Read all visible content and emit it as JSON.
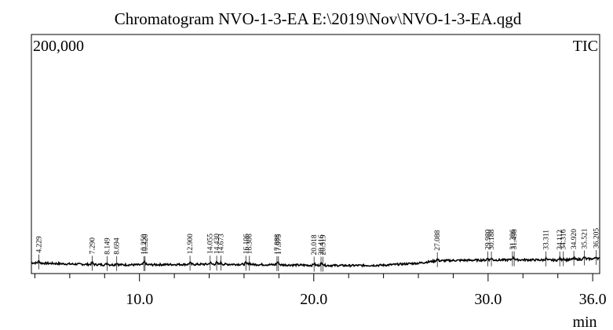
{
  "chart_data": {
    "type": "line",
    "title": "Chromatogram NVO-1-3-EA E:\\2019\\Nov\\NVO-1-3-EA.qgd",
    "y_max_label": "200,000",
    "trace_label": "TIC",
    "xlabel": "min",
    "xlim": [
      3.8,
      36.4
    ],
    "ylim": [
      0,
      200000
    ],
    "x_tick_labels": [
      {
        "x": 10.0,
        "label": "10.0"
      },
      {
        "x": 20.0,
        "label": "20.0"
      },
      {
        "x": 30.0,
        "label": "30.0"
      },
      {
        "x": 36.0,
        "label": "36.0"
      }
    ],
    "minor_ticks": [
      4,
      6,
      8,
      12,
      14,
      16,
      18,
      22,
      24,
      26,
      28,
      32,
      34
    ],
    "baseline": {
      "x": [
        3.8,
        6,
        8,
        10,
        12,
        14,
        16,
        18,
        20,
        22,
        24,
        26,
        27,
        28,
        30,
        32,
        34,
        35,
        36.4
      ],
      "y": [
        9000,
        8000,
        7400,
        7300,
        7600,
        7800,
        7700,
        7300,
        6900,
        6700,
        7000,
        8700,
        10600,
        11000,
        11300,
        11500,
        11200,
        11800,
        12600
      ]
    },
    "peaks": [
      {
        "rt": 4.229,
        "label": "4.229"
      },
      {
        "rt": 7.29,
        "label": "7.290"
      },
      {
        "rt": 8.149,
        "label": "8.149"
      },
      {
        "rt": 8.694,
        "label": "8.694"
      },
      {
        "rt": 10.25,
        "label": "10.250"
      },
      {
        "rt": 10.32,
        "label": "10.320"
      },
      {
        "rt": 12.9,
        "label": "12.900"
      },
      {
        "rt": 14.055,
        "label": "14.055"
      },
      {
        "rt": 14.43,
        "label": "14.430"
      },
      {
        "rt": 14.673,
        "label": "14.673"
      },
      {
        "rt": 16.106,
        "label": "16.106"
      },
      {
        "rt": 16.306,
        "label": "16.306"
      },
      {
        "rt": 17.888,
        "label": "17.888"
      },
      {
        "rt": 17.975,
        "label": "17.975"
      },
      {
        "rt": 20.018,
        "label": "20.018"
      },
      {
        "rt": 20.416,
        "label": "20.416"
      },
      {
        "rt": 20.519,
        "label": "20.519"
      },
      {
        "rt": 27.088,
        "label": "27.088"
      },
      {
        "rt": 29.98,
        "label": "29.980"
      },
      {
        "rt": 30.188,
        "label": "30.188"
      },
      {
        "rt": 31.396,
        "label": "31.396"
      },
      {
        "rt": 31.498,
        "label": "31.498"
      },
      {
        "rt": 33.311,
        "label": "33.311"
      },
      {
        "rt": 34.112,
        "label": "34.112"
      },
      {
        "rt": 34.316,
        "label": "34.316"
      },
      {
        "rt": 34.92,
        "label": "34.920"
      },
      {
        "rt": 35.521,
        "label": "35.521"
      },
      {
        "rt": 36.205,
        "label": "36.205"
      }
    ]
  }
}
